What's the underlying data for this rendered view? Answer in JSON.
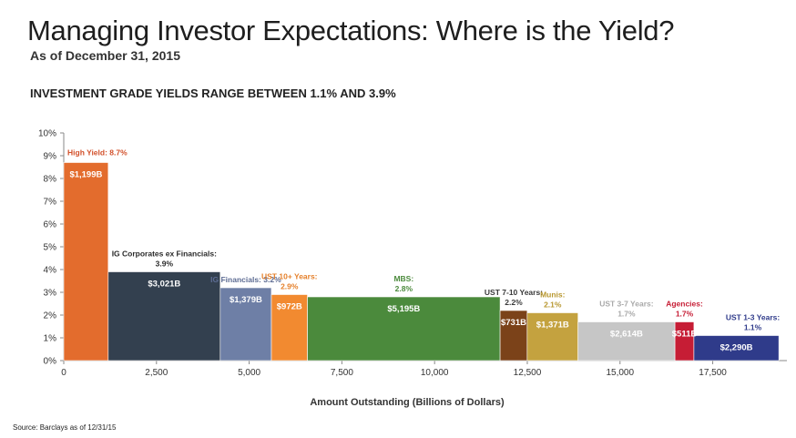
{
  "header": {
    "title": "Managing Investor Expectations: Where is the Yield?",
    "subtitle": "As of December 31, 2015",
    "headline": "INVESTMENT GRADE YIELDS RANGE BETWEEN 1.1% AND 3.9%"
  },
  "footer": {
    "source": "Source: Barclays as of 12/31/15"
  },
  "chart_data": {
    "type": "bar",
    "variant": "variable-width (mekko)",
    "title": "INVESTMENT GRADE YIELDS RANGE BETWEEN 1.1% AND 3.9%",
    "xlabel": "Amount Outstanding (Billions of Dollars)",
    "ylabel": "",
    "xlim": [
      0,
      19500
    ],
    "ylim": [
      0,
      10
    ],
    "x_ticks": [
      "0",
      "2,500",
      "5,000",
      "7,500",
      "10,000",
      "12,500",
      "15,000",
      "17,500"
    ],
    "x_tick_values": [
      0,
      2500,
      5000,
      7500,
      10000,
      12500,
      15000,
      17500
    ],
    "y_ticks": [
      "0%",
      "1%",
      "2%",
      "3%",
      "4%",
      "5%",
      "6%",
      "7%",
      "8%",
      "9%",
      "10%"
    ],
    "y_tick_values": [
      0,
      1,
      2,
      3,
      4,
      5,
      6,
      7,
      8,
      9,
      10
    ],
    "grid": false,
    "segments": [
      {
        "category": [
          "High Yield: 8.7%"
        ],
        "yield": 8.7,
        "amount": 1199,
        "amount_label": "$1,199B",
        "color": "#e36c2d",
        "label_color": "#d2502a"
      },
      {
        "category": [
          "IG Corporates ex Financials:",
          "3.9%"
        ],
        "yield": 3.9,
        "amount": 3021,
        "amount_label": "$3,021B",
        "color": "#33404f",
        "label_color": "#2a2a2a"
      },
      {
        "category": [
          "IG Financials: 3.2%"
        ],
        "yield": 3.2,
        "amount": 1379,
        "amount_label": "$1,379B",
        "color": "#6e7fa6",
        "label_color": "#5d6c93"
      },
      {
        "category": [
          "UST 10+ Years:",
          "2.9%"
        ],
        "yield": 2.9,
        "amount": 972,
        "amount_label": "$972B",
        "color": "#f28a30",
        "label_color": "#e5802b"
      },
      {
        "category": [
          "MBS:",
          "2.8%"
        ],
        "yield": 2.8,
        "amount": 5195,
        "amount_label": "$5,195B",
        "color": "#4b8a3c",
        "label_color": "#4b8a3c"
      },
      {
        "category": [
          "UST 7-10 Years:",
          "2.2%"
        ],
        "yield": 2.2,
        "amount": 731,
        "amount_label": "$731B",
        "color": "#7b4219",
        "label_color": "#3a3a3a"
      },
      {
        "category": [
          "Munis:",
          "2.1%"
        ],
        "yield": 2.1,
        "amount": 1371,
        "amount_label": "$1,371B",
        "color": "#c4a23f",
        "label_color": "#b8972f"
      },
      {
        "category": [
          "UST 3-7 Years:",
          "1.7%"
        ],
        "yield": 1.7,
        "amount": 2614,
        "amount_label": "$2,614B",
        "color": "#c6c6c6",
        "label_color": "#a9a9a9"
      },
      {
        "category": [
          "Agencies:",
          "1.7%"
        ],
        "yield": 1.7,
        "amount": 511,
        "amount_label": "$511B",
        "color": "#c61d35",
        "label_color": "#c61d35"
      },
      {
        "category": [
          "UST 1-3 Years:",
          "1.1%"
        ],
        "yield": 1.1,
        "amount": 2290,
        "amount_label": "$2,290B",
        "color": "#2f3b8a",
        "label_color": "#2f3b8a"
      }
    ]
  }
}
